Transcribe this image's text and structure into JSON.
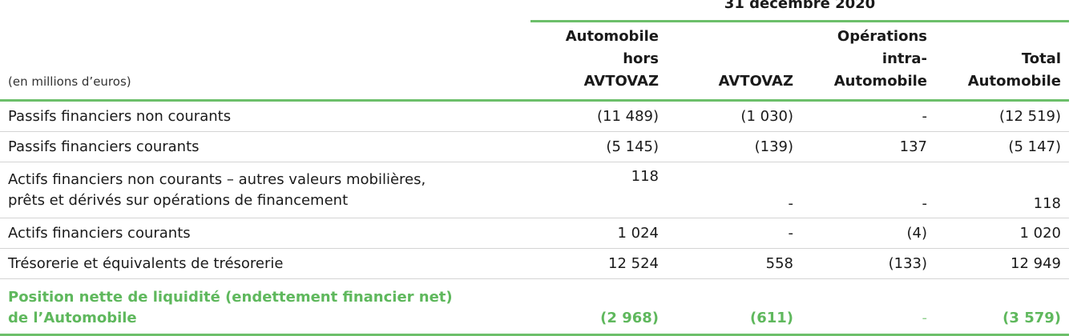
{
  "header": {
    "period": "31 décembre 2020",
    "unit": "(en millions d’euros)",
    "columns": [
      {
        "line1": "Automobile",
        "line2": "hors",
        "line3": "AVTOVAZ"
      },
      {
        "line1": "",
        "line2": "",
        "line3": "AVTOVAZ"
      },
      {
        "line1": "Opérations",
        "line2": "intra-",
        "line3": "Automobile"
      },
      {
        "line1": "",
        "line2": "Total",
        "line3": "Automobile"
      }
    ]
  },
  "rows": [
    {
      "label": "Passifs financiers non courants",
      "values": [
        "(11 489)",
        "(1 030)",
        "-",
        "(12 519)"
      ]
    },
    {
      "label": "Passifs financiers courants",
      "values": [
        "(5 145)",
        "(139)",
        "137",
        "(5 147)"
      ]
    },
    {
      "label_line1": "Actifs financiers non courants – autres valeurs mobilières,",
      "label_line2": "prêts et dérivés sur opérations de financement",
      "values": [
        "118",
        "-",
        "-",
        "118"
      ]
    },
    {
      "label": "Actifs financiers courants",
      "values": [
        "1 024",
        "-",
        "(4)",
        "1 020"
      ]
    },
    {
      "label": "Trésorerie et équivalents de trésorerie",
      "values": [
        "12 524",
        "558",
        "(133)",
        "12 949"
      ]
    }
  ],
  "total": {
    "label_line1": "Position nette de liquidité (endettement financier net)",
    "label_line2": "de l’Automobile",
    "values": [
      "(2 968)",
      "(611)",
      "-",
      "(3 579)"
    ]
  },
  "colors": {
    "accent": "#6cbf6a",
    "total_text": "#5fb85d"
  }
}
